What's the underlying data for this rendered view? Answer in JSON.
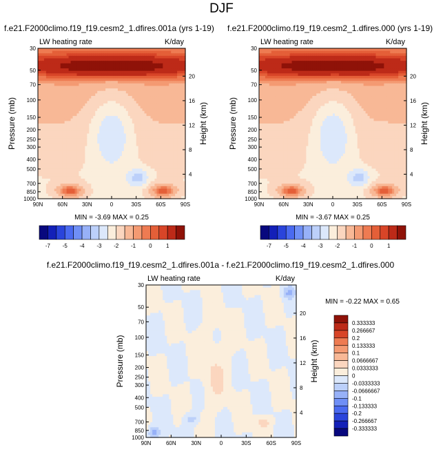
{
  "page_title": "DJF",
  "chart_data": [
    {
      "type": "heatmap",
      "title": "f.e21.F2000climo.f19_f19.cesm2_1.dfires.001a (yrs 1-19)",
      "left_label": "LW heating rate",
      "right_label": "K/day",
      "ylabel": "Pressure (mb)",
      "ylabel_right": "Height (km)",
      "xticks": [
        "90N",
        "60N",
        "30N",
        "0",
        "30S",
        "60S",
        "90S"
      ],
      "yticks": [
        "30",
        "50",
        "70",
        "100",
        "150",
        "200",
        "250",
        "300",
        "400",
        "500",
        "700",
        "850",
        "1000"
      ],
      "yticks_right": [
        "20",
        "16",
        "12",
        "8",
        "4"
      ],
      "stats": "MIN = -3.69   MAX =  0.25",
      "colorbar_labels": [
        "-7",
        "-5",
        "-4",
        "-3",
        "-2",
        "-1",
        "0",
        "1"
      ]
    },
    {
      "type": "heatmap",
      "title": "f.e21.F2000climo.f19_f19.cesm2_1.dfires.000 (yrs 1-19)",
      "left_label": "LW heating rate",
      "right_label": "K/day",
      "ylabel": "Pressure (mb)",
      "ylabel_right": "Height (km)",
      "xticks": [
        "90N",
        "60N",
        "30N",
        "0",
        "30S",
        "60S",
        "90S"
      ],
      "yticks": [
        "30",
        "50",
        "70",
        "100",
        "150",
        "200",
        "250",
        "300",
        "400",
        "500",
        "700",
        "850",
        "1000"
      ],
      "yticks_right": [
        "20",
        "16",
        "12",
        "8",
        "4"
      ],
      "stats": "MIN = -3.67   MAX =  0.25",
      "colorbar_labels": [
        "-7",
        "-5",
        "-4",
        "-3",
        "-2",
        "-1",
        "0",
        "1"
      ]
    },
    {
      "type": "heatmap",
      "title": "f.e21.F2000climo.f19_f19.cesm2_1.dfires.001a - f.e21.F2000climo.f19_f19.cesm2_1.dfires.000",
      "left_label": "LW heating rate",
      "right_label": "K/day",
      "ylabel": "Pressure (mb)",
      "ylabel_right": "Height (km)",
      "xticks": [
        "90N",
        "60N",
        "30N",
        "0",
        "30S",
        "60S",
        "90S"
      ],
      "yticks": [
        "30",
        "50",
        "70",
        "100",
        "150",
        "200",
        "250",
        "300",
        "400",
        "500",
        "700",
        "850",
        "1000"
      ],
      "yticks_right": [
        "20",
        "16",
        "12",
        "8",
        "4"
      ],
      "stats": "MIN =  -0.22   MAX =   0.65",
      "colorbar_labels": [
        "0.333333",
        "0.266667",
        "0.2",
        "0.133333",
        "0.1",
        "0.0666667",
        "0.0333333",
        "0",
        "-0.0333333",
        "-0.0666667",
        "-0.1",
        "-0.133333",
        "-0.2",
        "-0.266667",
        "-0.333333"
      ]
    }
  ],
  "colors": {
    "blues": [
      "#08087e",
      "#1320b8",
      "#2a44db",
      "#4a6af0",
      "#6f8ff6",
      "#97b1f8",
      "#bcd0fa",
      "#dce8fb"
    ],
    "cream": "#fbeedc",
    "reds": [
      "#fbd6bf",
      "#f8b896",
      "#f49a72",
      "#ee7b52",
      "#e45f38",
      "#d84528",
      "#bd2a18",
      "#8f1208"
    ],
    "diff_colors": [
      "#8f1208",
      "#bd2a18",
      "#d84528",
      "#ee7b52",
      "#f49a72",
      "#f8b896",
      "#fbd6bf",
      "#fbeedc",
      "#dce8fb",
      "#bcd0fa",
      "#97b1f8",
      "#6f8ff6",
      "#4a6af0",
      "#2a44db",
      "#1320b8",
      "#08087e"
    ]
  }
}
